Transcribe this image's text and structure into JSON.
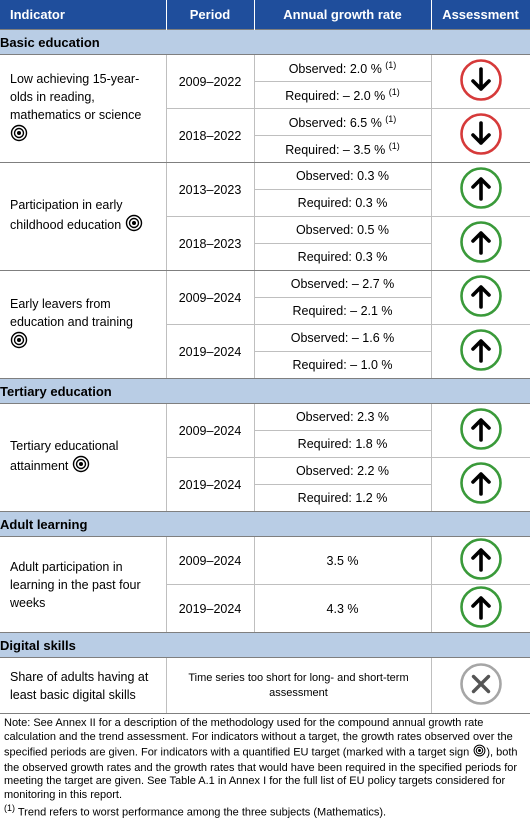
{
  "header": {
    "indicator": "Indicator",
    "period": "Period",
    "growth_rate": "Annual growth rate",
    "assessment": "Assessment"
  },
  "sections": {
    "basic": "Basic education",
    "tertiary": "Tertiary education",
    "adult": "Adult learning",
    "digital": "Digital skills"
  },
  "rows": {
    "low_achieving": {
      "label": "Low achieving 15-year-olds in reading, mathematics or science",
      "periods": [
        {
          "period": "2009–2022",
          "observed": "Observed: 2.0 %",
          "required": "Required: – 2.0 %",
          "assessment": "down"
        },
        {
          "period": "2018–2022",
          "observed": "Observed: 6.5 %",
          "required": "Required: – 3.5 %",
          "assessment": "down"
        }
      ]
    },
    "early_childhood": {
      "label": "Participation in early childhood education",
      "periods": [
        {
          "period": "2013–2023",
          "observed": "Observed: 0.3 %",
          "required": "Required: 0.3 %",
          "assessment": "up"
        },
        {
          "period": "2018–2023",
          "observed": "Observed: 0.5 %",
          "required": "Required: 0.3 %",
          "assessment": "up"
        }
      ]
    },
    "early_leavers": {
      "label": "Early leavers from education and training",
      "periods": [
        {
          "period": "2009–2024",
          "observed": "Observed: – 2.7 %",
          "required": "Required: – 2.1 %",
          "assessment": "up"
        },
        {
          "period": "2019–2024",
          "observed": "Observed: – 1.6 %",
          "required": "Required: – 1.0 %",
          "assessment": "up"
        }
      ]
    },
    "tertiary": {
      "label": "Tertiary educational attainment",
      "periods": [
        {
          "period": "2009–2024",
          "observed": "Observed: 2.3 %",
          "required": "Required: 1.8 %",
          "assessment": "up"
        },
        {
          "period": "2019–2024",
          "observed": "Observed: 2.2 %",
          "required": "Required: 1.2 %",
          "assessment": "up"
        }
      ]
    },
    "adult": {
      "label": "Adult participation in learning in the past four weeks",
      "periods": [
        {
          "period": "2009–2024",
          "value": "3.5 %",
          "assessment": "up"
        },
        {
          "period": "2019–2024",
          "value": "4.3 %",
          "assessment": "up"
        }
      ]
    },
    "digital": {
      "label": "Share of adults having at least basic digital skills",
      "value": "Time series too short for long- and short-term assessment",
      "assessment": "not-assessable"
    }
  },
  "footnote_mark": "(1)",
  "note": {
    "part1": "Note: See Annex II for a description of the methodology used for the compound annual growth rate calculation and the trend assessment. For indicators without a target, the growth rates observed over the specified periods are given. For indicators with a quantified EU target (marked with a target sign",
    "part2": "), both the observed growth rates and the growth rates that would have been required in the specified periods for meeting the target are given. See Table A.1 in Annex I for the full list of EU policy targets considered for monitoring in this report.",
    "footnote": "Trend refers to worst performance among the three subjects (Mathematics)."
  },
  "icons": {
    "target": "target-icon",
    "up": "arrow-up-circle-icon",
    "down": "arrow-down-circle-icon",
    "na": "cross-circle-icon"
  },
  "colors": {
    "header_bg": "#1f4e9c",
    "section_bg": "#b9cde5",
    "up": "#3a9a3a",
    "down": "#d63a3a",
    "na": "#a6a6a6"
  }
}
